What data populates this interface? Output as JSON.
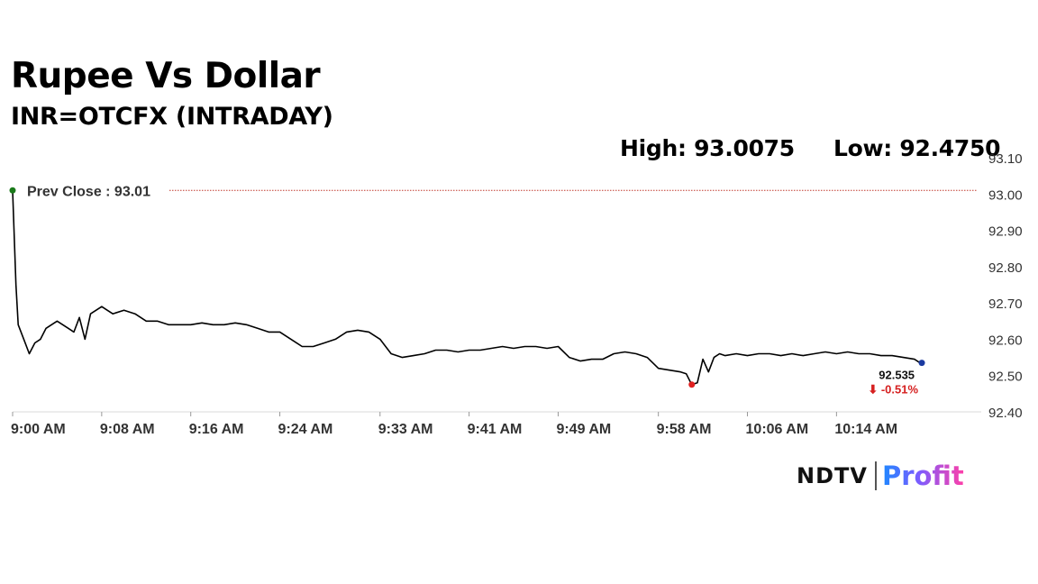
{
  "header": {
    "title": "Rupee Vs Dollar",
    "subtitle": "INR=OTCFX (INTRADAY)",
    "high_label": "High: 93.0075",
    "low_label": "Low: 92.4750"
  },
  "logo": {
    "brand": "NDTV",
    "product": "Profit"
  },
  "chart_data": {
    "type": "line",
    "title": "Rupee Vs Dollar",
    "subtitle": "INR=OTCFX (INTRADAY)",
    "xlabel": "",
    "ylabel": "",
    "ylim": [
      92.4,
      93.1
    ],
    "yticks": [
      "93.10",
      "93.00",
      "92.90",
      "92.80",
      "92.70",
      "92.60",
      "92.50",
      "92.40"
    ],
    "xlim": [
      0,
      87
    ],
    "x_ticks": [
      {
        "t": 0,
        "label": "9:00 AM"
      },
      {
        "t": 8,
        "label": "9:08 AM"
      },
      {
        "t": 16,
        "label": "9:16 AM"
      },
      {
        "t": 24,
        "label": "9:24 AM"
      },
      {
        "t": 33,
        "label": "9:33 AM"
      },
      {
        "t": 41,
        "label": "9:41 AM"
      },
      {
        "t": 49,
        "label": "9:49 AM"
      },
      {
        "t": 58,
        "label": "9:58 AM"
      },
      {
        "t": 66,
        "label": "10:06 AM"
      },
      {
        "t": 74,
        "label": "10:14 AM"
      }
    ],
    "grid": false,
    "prev_close": {
      "value": 93.01,
      "label": "Prev Close : 93.01"
    },
    "last": {
      "value": 92.535,
      "label": "92.535",
      "change_label": "⬇ -0.51%"
    },
    "low_point": {
      "t": 61,
      "value": 92.475
    },
    "colors": {
      "line": "#000000",
      "prev_close": "#c0392b",
      "start_marker": "#1a7a1a",
      "low_marker": "#e02020",
      "last_marker": "#1a3aa0",
      "change": "#d62020"
    },
    "series": [
      {
        "x": [
          0,
          0.3,
          0.5,
          1,
          1.5,
          2,
          2.5,
          3,
          3.5,
          4,
          4.5,
          5,
          5.5,
          6,
          6.5,
          7,
          7.5,
          8,
          8.5,
          9,
          10,
          11,
          12,
          13,
          14,
          15,
          16,
          17,
          18,
          19,
          20,
          21,
          22,
          23,
          24,
          25,
          26,
          27,
          28,
          29,
          30,
          31,
          32,
          33,
          34,
          35,
          36,
          37,
          38,
          39,
          40,
          41,
          42,
          43,
          44,
          45,
          46,
          47,
          48,
          49,
          50,
          51,
          52,
          53,
          54,
          55,
          56,
          57,
          58,
          59,
          60,
          60.5,
          61,
          61.5,
          62,
          62.5,
          63,
          63.5,
          64,
          65,
          66,
          67,
          68,
          69,
          70,
          71,
          72,
          73,
          74,
          75,
          76,
          77,
          78,
          79,
          80,
          81,
          81.5
        ],
        "values": [
          93.01,
          92.75,
          92.64,
          92.6,
          92.56,
          92.59,
          92.6,
          92.63,
          92.64,
          92.65,
          92.64,
          92.63,
          92.62,
          92.66,
          92.6,
          92.67,
          92.68,
          92.69,
          92.68,
          92.67,
          92.68,
          92.67,
          92.65,
          92.65,
          92.64,
          92.64,
          92.64,
          92.645,
          92.64,
          92.64,
          92.645,
          92.64,
          92.63,
          92.62,
          92.62,
          92.6,
          92.58,
          92.58,
          92.59,
          92.6,
          92.62,
          92.625,
          92.62,
          92.6,
          92.56,
          92.55,
          92.555,
          92.56,
          92.57,
          92.57,
          92.565,
          92.57,
          92.57,
          92.575,
          92.58,
          92.575,
          92.58,
          92.58,
          92.575,
          92.58,
          92.55,
          92.54,
          92.545,
          92.545,
          92.56,
          92.565,
          92.56,
          92.55,
          92.52,
          92.515,
          92.51,
          92.505,
          92.475,
          92.48,
          92.545,
          92.51,
          92.55,
          92.56,
          92.555,
          92.56,
          92.555,
          92.56,
          92.56,
          92.555,
          92.56,
          92.555,
          92.56,
          92.565,
          92.56,
          92.565,
          92.56,
          92.56,
          92.555,
          92.555,
          92.55,
          92.545,
          92.535
        ]
      }
    ]
  }
}
